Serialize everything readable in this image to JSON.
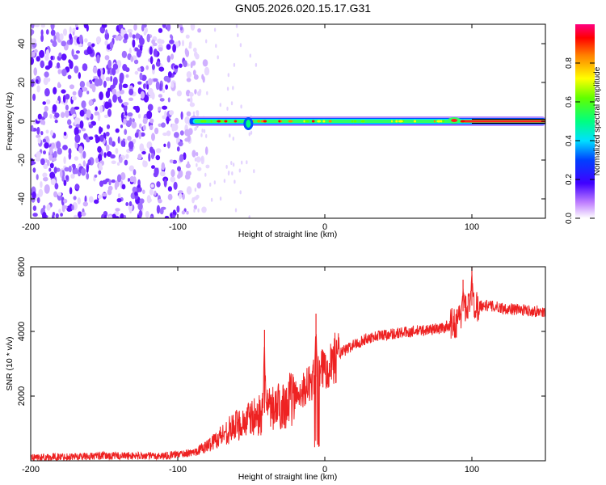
{
  "chart_data": [
    {
      "type": "heatmap",
      "title": "GN05.2026.020.15.17.G31",
      "xlabel": "Height of straight line (km)",
      "ylabel": "Frequency (Hz)",
      "xlim": [
        -200,
        150
      ],
      "ylim": [
        -50,
        50
      ],
      "xticks": [
        -200,
        -100,
        0,
        100
      ],
      "yticks": [
        -40,
        -20,
        0,
        20,
        40
      ],
      "colorbar": {
        "label": "Normalized spectral amplitude",
        "range": [
          0,
          1
        ],
        "ticks": [
          0.0,
          0.2,
          0.4,
          0.6,
          0.8
        ],
        "tick_labels": [
          "0.0",
          "0.2",
          "0.4",
          "0.6",
          "0.8"
        ],
        "colormap": [
          "#ffffff",
          "#7a00ff",
          "#0000ff",
          "#00ffff",
          "#00ff00",
          "#ffff00",
          "#ff8000",
          "#ff0000",
          "#ff0080"
        ]
      },
      "description_points": {
        "noise_region_x": [
          -200,
          -90
        ],
        "signal_band_x": [
          -92,
          150
        ],
        "signal_frequency_hz": 0
      }
    },
    {
      "type": "line",
      "xlabel": "Height of straight line (km)",
      "ylabel": "SNR (10 * v/v)",
      "xlim": [
        -200,
        150
      ],
      "ylim": [
        0,
        6000
      ],
      "xticks": [
        -200,
        -100,
        0,
        100
      ],
      "yticks": [
        2000,
        4000,
        6000
      ],
      "series": [
        {
          "name": "SNR",
          "color": "#ee2222",
          "x": [
            -200,
            -150,
            -110,
            -90,
            -80,
            -70,
            -60,
            -50,
            -40,
            -30,
            -20,
            -10,
            0,
            10,
            20,
            30,
            40,
            60,
            80,
            90,
            95,
            100,
            110,
            125,
            150
          ],
          "y": [
            100,
            150,
            150,
            250,
            450,
            800,
            1100,
            1300,
            1500,
            1700,
            2000,
            2400,
            2900,
            3300,
            3600,
            3800,
            3900,
            4000,
            4100,
            4300,
            4700,
            4800,
            4800,
            4700,
            4600
          ],
          "spikes": [
            {
              "x": -41,
              "y": 4050
            },
            {
              "x": -6,
              "y": 4550
            },
            {
              "x": 94,
              "y": 5600
            },
            {
              "x": 100,
              "y": 6050
            }
          ]
        }
      ]
    }
  ]
}
